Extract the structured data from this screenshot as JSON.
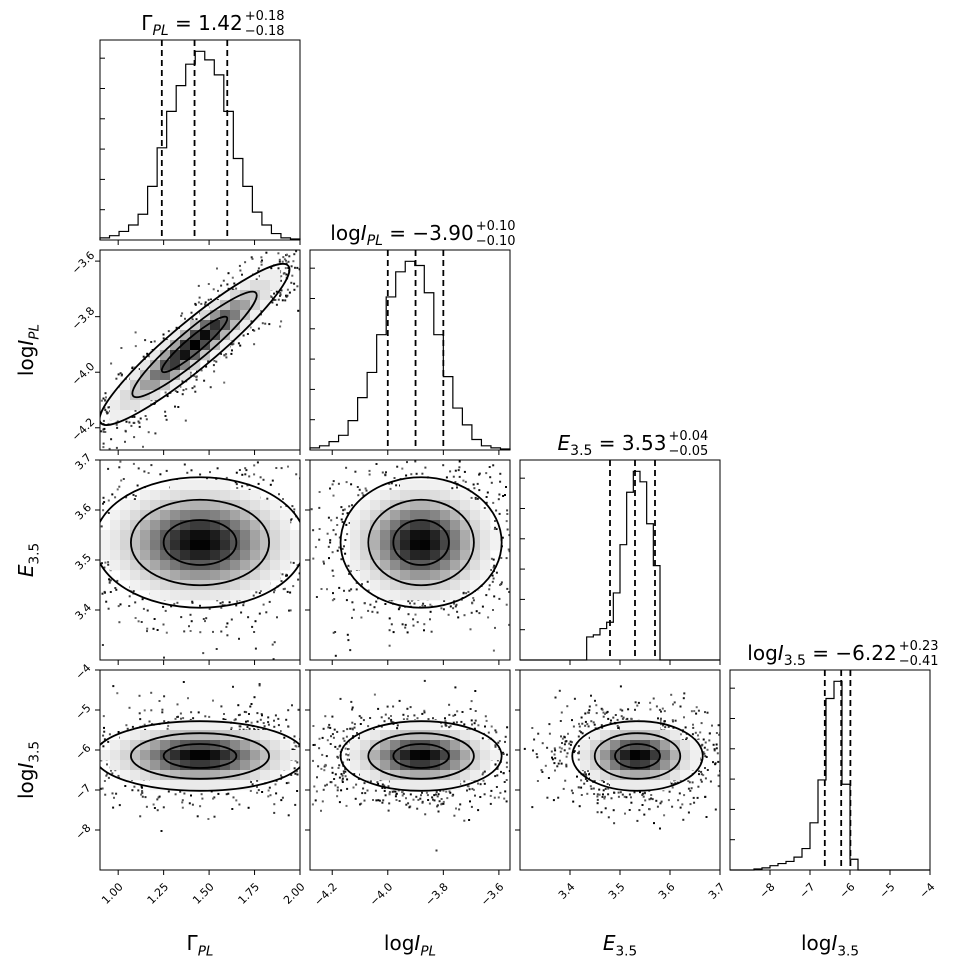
{
  "chart_data": {
    "type": "corner",
    "parameters": [
      {
        "key": "gamma",
        "label": "Γ",
        "sub": "PL",
        "title_value": "1.42",
        "err_plus": "+0.18",
        "err_minus": "−0.18",
        "range": [
          0.9,
          2.0
        ],
        "ticks": [
          1.0,
          1.25,
          1.5,
          1.75,
          2.0
        ],
        "tick_labels": [
          "1.00",
          "1.25",
          "1.50",
          "1.75",
          "2.00"
        ],
        "median": 1.42,
        "q16": 1.24,
        "q84": 1.6,
        "hist": [
          1,
          2,
          4,
          7,
          12,
          25,
          43,
          60,
          72,
          82,
          88,
          84,
          77,
          60,
          38,
          25,
          13,
          7,
          3,
          1,
          0.5
        ]
      },
      {
        "key": "lognpl",
        "label": "log",
        "italic": "I",
        "sub": "PL",
        "title_value": "−3.90",
        "err_plus": "+0.10",
        "err_minus": "−0.10",
        "range": [
          -4.28,
          -3.56
        ],
        "ticks": [
          -4.2,
          -4.0,
          -3.8,
          -3.6
        ],
        "tick_labels": [
          "−4.2",
          "−4.0",
          "−3.8",
          "−3.6"
        ],
        "median": -3.9,
        "q16": -4.0,
        "q84": -3.8,
        "hist": [
          1,
          2,
          4,
          7,
          14,
          25,
          37,
          55,
          73,
          85,
          90,
          88,
          75,
          55,
          35,
          20,
          12,
          5,
          2,
          1,
          0.5
        ]
      },
      {
        "key": "e35",
        "label": "E",
        "sub": "3.5",
        "title_value": "3.53",
        "err_plus": "+0.04",
        "err_minus": "−0.05",
        "range": [
          3.3,
          3.7
        ],
        "ticks": [
          3.4,
          3.5,
          3.6,
          3.7
        ],
        "tick_labels": [
          "3.4",
          "3.5",
          "3.6",
          "3.7"
        ],
        "median": 3.53,
        "q16": 3.48,
        "q84": 3.57,
        "hist": [
          0,
          0,
          0,
          0,
          0,
          0,
          0,
          0,
          0,
          0,
          11,
          12,
          15,
          18,
          32,
          55,
          80,
          90,
          85,
          65,
          45,
          0,
          0,
          0,
          0,
          0,
          0,
          0,
          0,
          0
        ]
      },
      {
        "key": "logn35",
        "label": "log",
        "italic": "I",
        "sub": "3.5",
        "title_value": "−6.22",
        "err_plus": "+0.23",
        "err_minus": "−0.41",
        "range": [
          -9.0,
          -4.0
        ],
        "ticks": [
          -8,
          -7,
          -6,
          -5,
          -4
        ],
        "tick_labels": [
          "−8",
          "−7",
          "−6",
          "−5",
          "−4"
        ],
        "median": -6.22,
        "q16": -6.63,
        "q84": -5.99,
        "hist": [
          0,
          0,
          0,
          0.5,
          1,
          2,
          3,
          4,
          6,
          10,
          22,
          42,
          80,
          88,
          40,
          5,
          0,
          0,
          0,
          0,
          0,
          0,
          0,
          0,
          0
        ]
      }
    ],
    "pairs": [
      {
        "x": 0,
        "y": 1,
        "cx": 1.42,
        "cy": -3.9,
        "sx": 0.18,
        "sy": 0.1,
        "rho": 0.93
      },
      {
        "x": 0,
        "y": 2,
        "cx": 1.45,
        "cy": 3.535,
        "sx": 0.2,
        "sy": 0.045,
        "rho": 0.0
      },
      {
        "x": 1,
        "y": 2,
        "cx": -3.88,
        "cy": 3.535,
        "sx": 0.1,
        "sy": 0.045,
        "rho": 0.0
      },
      {
        "x": 0,
        "y": 3,
        "cx": 1.45,
        "cy": -6.15,
        "sx": 0.2,
        "sy": 0.3,
        "rho": 0.0
      },
      {
        "x": 1,
        "y": 3,
        "cx": -3.88,
        "cy": -6.15,
        "sx": 0.1,
        "sy": 0.3,
        "rho": 0.0
      },
      {
        "x": 2,
        "y": 3,
        "cx": 3.535,
        "cy": -6.15,
        "sx": 0.045,
        "sy": 0.3,
        "rho": 0.0
      }
    ]
  }
}
